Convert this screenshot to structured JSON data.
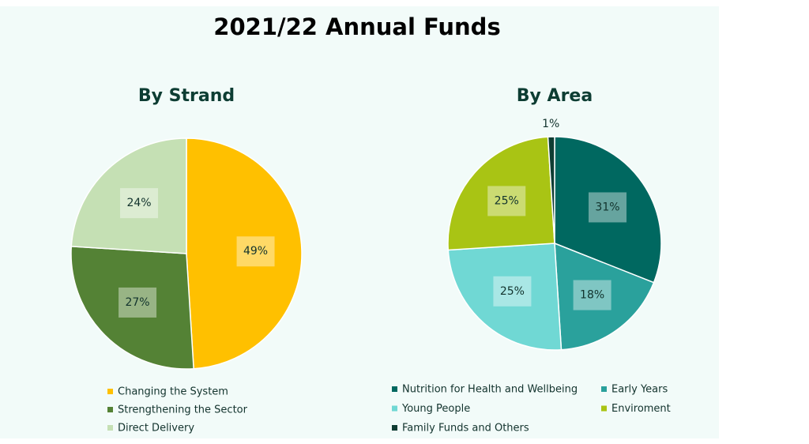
{
  "title": "2021/22 Annual Funds",
  "chart_data": [
    {
      "type": "pie",
      "title": "By Strand",
      "categories": [
        "Changing the System",
        "Strengthening the Sector",
        "Direct Delivery"
      ],
      "values": [
        49,
        27,
        24
      ],
      "value_labels": [
        "49%",
        "27%",
        "24%"
      ],
      "colors": [
        "#ffc000",
        "#548235",
        "#c5e0b4"
      ]
    },
    {
      "type": "pie",
      "title": "By Area",
      "categories": [
        "Nutrition for Health and Wellbeing",
        "Early Years",
        "Young People",
        "Enviroment",
        "Family Funds and Others"
      ],
      "values": [
        31,
        18,
        25,
        25,
        1
      ],
      "value_labels": [
        "31%",
        "18%",
        "25%",
        "25%",
        "1%"
      ],
      "colors": [
        "#006860",
        "#2aa19c",
        "#70d8d4",
        "#a9c414",
        "#0f3d33"
      ]
    }
  ]
}
